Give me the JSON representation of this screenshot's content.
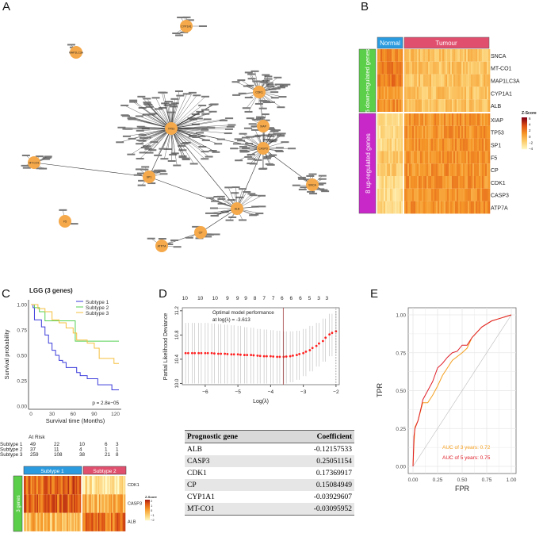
{
  "panels": {
    "a": "A",
    "b": "B",
    "c": "C",
    "d": "D",
    "e": "E"
  },
  "network": {
    "node_color": "#f5a94a",
    "hubs": [
      "CYP1A1",
      "MAP1LC3A",
      "MT-CO1",
      "F5",
      "TP53",
      "SP1",
      "CDK1",
      "XIAP",
      "CASP3",
      "SNCA",
      "ALB",
      "CP",
      "ATP7A"
    ]
  },
  "heatmap_b": {
    "groups": [
      "Normal",
      "Tumour"
    ],
    "group_colors": [
      "#2b9be0",
      "#e0506e"
    ],
    "row_groups": [
      {
        "label": "5 down-regulated genes",
        "color": "#5ccf4a"
      },
      {
        "label": "8 up-regulated genes",
        "color": "#c828c8"
      }
    ],
    "genes": [
      "SNCA",
      "MT-CO1",
      "MAP1LC3A",
      "CYP1A1",
      "ALB",
      "XIAP",
      "TP53",
      "SP1",
      "F5",
      "CP",
      "CDK1",
      "CASP3",
      "ATP7A"
    ],
    "row_group_of_gene": [
      0,
      0,
      0,
      0,
      0,
      1,
      1,
      1,
      1,
      1,
      1,
      1,
      1
    ],
    "mean_z": {
      "Normal": [
        1.5,
        2,
        2,
        1,
        1.2,
        -2.5,
        -2.5,
        -2,
        -1.5,
        -1.5,
        -2.2,
        -2.2,
        -2
      ],
      "Tumour": [
        -1,
        -1,
        -1,
        -1,
        -1,
        1,
        1,
        1,
        1,
        1,
        1,
        1,
        1
      ]
    },
    "legend": {
      "title": "Z-Score",
      "ticks": [
        "6",
        "4",
        "2",
        "0",
        "−2",
        "−4"
      ]
    }
  },
  "chart_data": [
    {
      "type": "line",
      "panel": "C",
      "title": "LGG (3 genes)",
      "xlabel": "Survival time (Months)",
      "ylabel": "Survival probability",
      "xlim": [
        0,
        125
      ],
      "ylim": [
        0,
        1
      ],
      "xticks": [
        "0",
        "30",
        "60",
        "90",
        "120"
      ],
      "yticks": [
        "0.00",
        "0.25",
        "0.50",
        "0.75",
        "1.00"
      ],
      "legend": "top-right",
      "annotation": "p = 2.8e−05",
      "series": [
        {
          "name": "Subtype 1",
          "color": "#3b3bdb",
          "x": [
            0,
            3,
            5,
            12,
            15,
            20,
            25,
            30,
            35,
            40,
            45,
            50,
            60,
            65,
            70,
            80,
            95,
            115,
            125
          ],
          "y": [
            1,
            0.97,
            0.85,
            0.85,
            0.78,
            0.7,
            0.62,
            0.55,
            0.5,
            0.45,
            0.43,
            0.38,
            0.38,
            0.33,
            0.3,
            0.27,
            0.21,
            0.16,
            0.16
          ]
        },
        {
          "name": "Subtype 2",
          "color": "#55d055",
          "x": [
            0,
            5,
            12,
            20,
            63,
            125
          ],
          "y": [
            1,
            0.97,
            0.93,
            0.84,
            0.64,
            0.64
          ]
        },
        {
          "name": "Subtype 3",
          "color": "#f5c040",
          "x": [
            0,
            10,
            20,
            30,
            40,
            50,
            60,
            65,
            80,
            90,
            97,
            110,
            118,
            125
          ],
          "y": [
            1,
            0.96,
            0.93,
            0.85,
            0.82,
            0.77,
            0.72,
            0.65,
            0.62,
            0.57,
            0.47,
            0.47,
            0.42,
            0.42
          ]
        }
      ],
      "at_risk": {
        "title": "At Risk",
        "rows": [
          {
            "label": "Subtype 1",
            "values": [
              "49",
              "22",
              "10",
              "6",
              "3"
            ]
          },
          {
            "label": "Subtype 2",
            "values": [
              "37",
              "11",
              "4",
              "1",
              "1"
            ]
          },
          {
            "label": "Subtype 3",
            "values": [
              "259",
              "108",
              "38",
              "21",
              "8"
            ]
          }
        ]
      }
    },
    {
      "type": "heatmap",
      "panel": "C-heatmap",
      "groups": [
        "Subtype 1",
        "Subtype 2"
      ],
      "group_colors": [
        "#2b9be0",
        "#e0506e"
      ],
      "row_group": {
        "label": "3 genes",
        "color": "#5ccf4a"
      },
      "genes": [
        "CDK1",
        "CASP3",
        "ALB"
      ],
      "mean_z": {
        "Subtype 1": [
          1,
          1,
          -0.5
        ],
        "Subtype 2": [
          -1.5,
          -0.3,
          0.8
        ]
      },
      "legend": {
        "title": "Z-Score",
        "ticks": [
          "2",
          "1",
          "0",
          "−1",
          "−2"
        ]
      }
    },
    {
      "type": "scatter",
      "panel": "D",
      "xlabel": "Log(λ)",
      "ylabel": "Partial Likelihood Deviance",
      "xlim": [
        -6.7,
        -1.9
      ],
      "ylim": [
        9.98,
        11.25
      ],
      "xticks": [
        "-6",
        "-5",
        "-4",
        "-3",
        "-2"
      ],
      "yticks": [
        "10.0",
        "10.4",
        "10.8",
        "11.2"
      ],
      "annotation": "Optimal model performance\nat log(λ) = -3.613",
      "optimal_log_lambda": -3.613,
      "vline2": -2.0,
      "top_axis": {
        "x": [
          -6.62,
          -6.15,
          -5.7,
          -5.32,
          -5.01,
          -4.76,
          -4.48,
          -4.2,
          -3.92,
          -3.65,
          -3.37,
          -3.09,
          -2.81,
          -2.53,
          -2.28
        ],
        "labels": [
          "10",
          "10",
          "10",
          "9",
          "9",
          "9",
          "8",
          "7",
          "7",
          "6",
          "6",
          "6",
          "5",
          "3",
          "3"
        ]
      },
      "points": {
        "x": [
          -6.6,
          -6.4,
          -6.2,
          -6.0,
          -5.8,
          -5.6,
          -5.4,
          -5.2,
          -5.0,
          -4.8,
          -4.6,
          -4.4,
          -4.2,
          -4.0,
          -3.8,
          -3.6,
          -3.4,
          -3.2,
          -3.0,
          -2.8,
          -2.6,
          -2.4,
          -2.2,
          -2.0
        ],
        "mean": [
          10.5,
          10.5,
          10.5,
          10.5,
          10.5,
          10.49,
          10.49,
          10.48,
          10.48,
          10.47,
          10.47,
          10.46,
          10.45,
          10.45,
          10.44,
          10.44,
          10.45,
          10.47,
          10.5,
          10.55,
          10.62,
          10.7,
          10.81,
          10.86
        ],
        "lower": [
          10.0,
          10.0,
          10.0,
          10.0,
          10.0,
          10.0,
          10.0,
          10.0,
          10.0,
          10.0,
          10.0,
          10.0,
          10.0,
          10.0,
          10.0,
          10.0,
          10.02,
          10.06,
          10.12,
          10.2,
          10.28,
          10.36,
          10.45,
          10.5
        ],
        "upper": [
          11.0,
          11.0,
          11.0,
          11.0,
          10.99,
          10.98,
          10.97,
          10.96,
          10.95,
          10.93,
          10.92,
          10.9,
          10.89,
          10.88,
          10.87,
          10.86,
          10.86,
          10.87,
          10.9,
          10.95,
          11.0,
          11.07,
          11.15,
          11.2
        ]
      },
      "color": "#ff2020"
    },
    {
      "type": "table",
      "panel": "D-table",
      "columns": [
        "Prognostic gene",
        "Coefficient"
      ],
      "rows": [
        [
          "ALB",
          "-0.12157533"
        ],
        [
          "CASP3",
          "0.25051154"
        ],
        [
          "CDK1",
          "0.17369917"
        ],
        [
          "CP",
          "0.15084949"
        ],
        [
          "CYP1A1",
          "-0.03929607"
        ],
        [
          "MT-CO1",
          "-0.03095952"
        ]
      ]
    },
    {
      "type": "line",
      "panel": "E",
      "xlabel": "FPR",
      "ylabel": "TPR",
      "xlim": [
        0,
        1
      ],
      "ylim": [
        0,
        1
      ],
      "grid": true,
      "xticks": [
        "0.00",
        "0.25",
        "0.50",
        "0.75",
        "1.00"
      ],
      "yticks": [
        "0.00",
        "0.25",
        "0.50",
        "0.75",
        "1.00"
      ],
      "series": [
        {
          "name": "AUC of 3 years:  0.72",
          "color": "#f5a020",
          "x": [
            0,
            0.01,
            0.02,
            0.05,
            0.1,
            0.15,
            0.2,
            0.25,
            0.3,
            0.35,
            0.4,
            0.5,
            0.55,
            0.6,
            0.7,
            0.8,
            0.9,
            1
          ],
          "y": [
            0,
            0.15,
            0.26,
            0.3,
            0.42,
            0.42,
            0.47,
            0.53,
            0.6,
            0.65,
            0.7,
            0.75,
            0.78,
            0.85,
            0.92,
            0.96,
            0.98,
            1
          ]
        },
        {
          "name": "AUC of 5 years:  0.75",
          "color": "#e0202a",
          "x": [
            0,
            0.01,
            0.02,
            0.05,
            0.08,
            0.1,
            0.15,
            0.2,
            0.25,
            0.3,
            0.35,
            0.4,
            0.45,
            0.5,
            0.55,
            0.6,
            0.7,
            0.8,
            0.9,
            1
          ],
          "y": [
            0,
            0.2,
            0.25,
            0.3,
            0.38,
            0.44,
            0.5,
            0.56,
            0.65,
            0.68,
            0.72,
            0.75,
            0.76,
            0.8,
            0.8,
            0.85,
            0.92,
            0.96,
            0.98,
            1
          ]
        }
      ]
    }
  ]
}
